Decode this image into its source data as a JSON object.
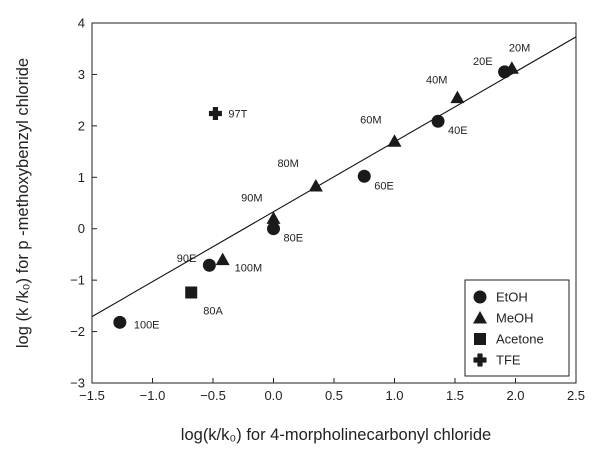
{
  "chart_data": {
    "type": "scatter",
    "xlabel": "log(k/k₀) for 4-morpholinecarbonyl chloride",
    "ylabel": "log (k /k₀) for p -methoxybenzyl chloride",
    "xlim": [
      -1.5,
      2.5
    ],
    "ylim": [
      -3,
      4
    ],
    "x_ticks": [
      "−1.5",
      "−1.0",
      "−0.5",
      "0.0",
      "0.5",
      "1.0",
      "1.5",
      "2.0",
      "2.5"
    ],
    "y_ticks": [
      "−3",
      "−2",
      "−1",
      "0",
      "1",
      "2",
      "3",
      "4"
    ],
    "grid": false,
    "legend_position": "bottom-right",
    "series": [
      {
        "name": "EtOH",
        "marker": "circle",
        "points": [
          {
            "label": "100E",
            "x": -1.27,
            "y": -1.82
          },
          {
            "label": "90E",
            "x": -0.53,
            "y": -0.71
          },
          {
            "label": "80E",
            "x": 0.0,
            "y": 0.0
          },
          {
            "label": "60E",
            "x": 0.75,
            "y": 1.02
          },
          {
            "label": "40E",
            "x": 1.36,
            "y": 2.09
          },
          {
            "label": "20E",
            "x": 1.91,
            "y": 3.05
          }
        ]
      },
      {
        "name": "MeOH",
        "marker": "triangle",
        "points": [
          {
            "label": "100M",
            "x": -0.42,
            "y": -0.6
          },
          {
            "label": "90M",
            "x": 0.0,
            "y": 0.2
          },
          {
            "label": "80M",
            "x": 0.35,
            "y": 0.83
          },
          {
            "label": "60M",
            "x": 1.0,
            "y": 1.7
          },
          {
            "label": "40M",
            "x": 1.52,
            "y": 2.55
          },
          {
            "label": "20M",
            "x": 1.97,
            "y": 3.12
          }
        ]
      },
      {
        "name": "Acetone",
        "marker": "square",
        "points": [
          {
            "label": "80A",
            "x": -0.68,
            "y": -1.24
          }
        ]
      },
      {
        "name": "TFE",
        "marker": "cross",
        "points": [
          {
            "label": "97T",
            "x": -0.48,
            "y": 2.24
          }
        ]
      }
    ],
    "regression_line": {
      "slope": 1.36,
      "intercept": 0.33,
      "x_range": [
        -1.5,
        2.5
      ]
    }
  }
}
